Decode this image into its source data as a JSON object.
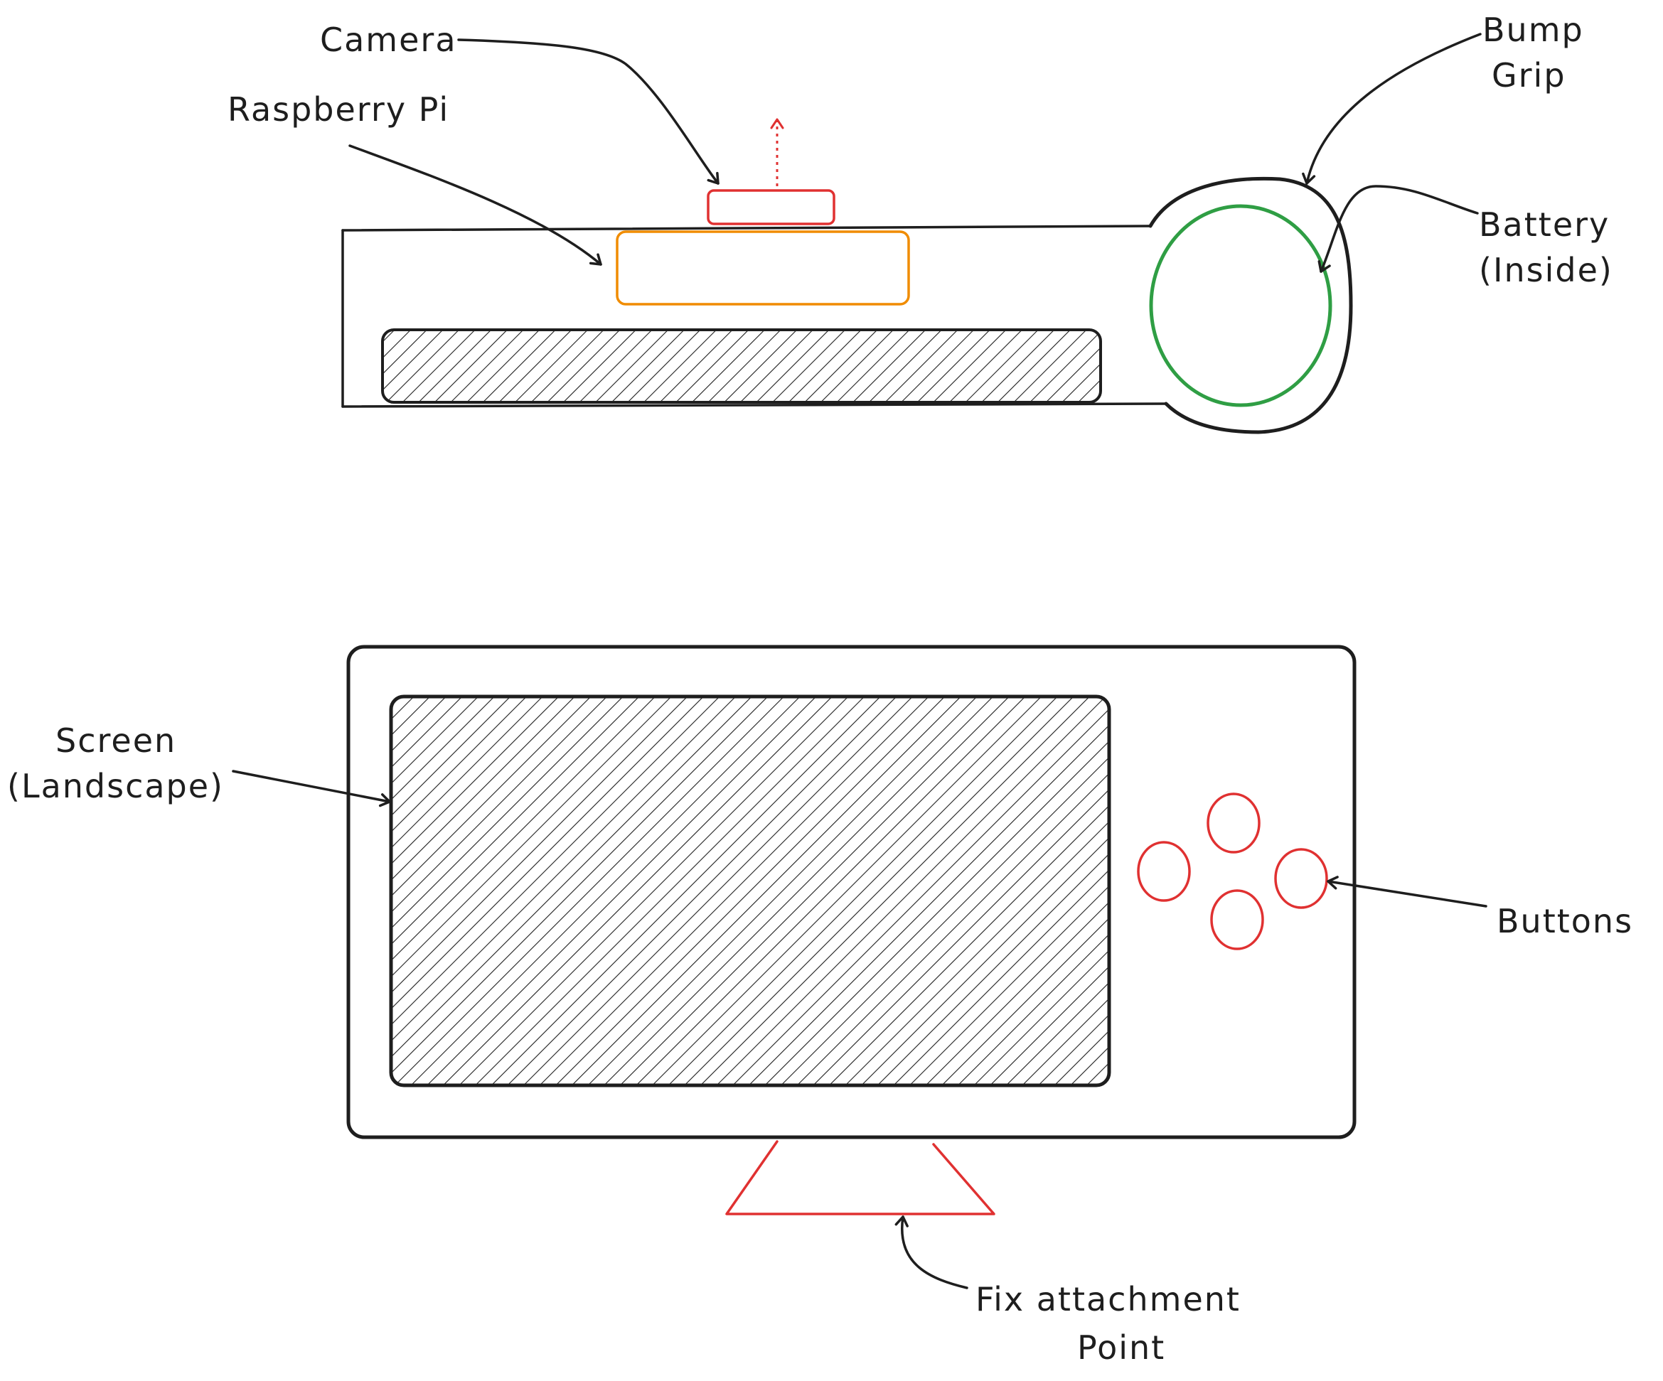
{
  "labels": {
    "camera": "Camera",
    "raspberry_pi": "Raspberry Pi",
    "bump_grip_line1": "Bump",
    "bump_grip_line2": "Grip",
    "battery_line1": "Battery",
    "battery_line2": "(Inside)",
    "screen_line1": "Screen",
    "screen_line2": "(Landscape)",
    "buttons": "Buttons",
    "attachment_line1": "Fix attachment",
    "attachment_line2": "Point"
  },
  "colors": {
    "ink": "#1e1e1e",
    "camera": "#e03131",
    "raspberry_pi": "#f08c00",
    "battery": "#2f9e44",
    "buttons": "#e03131",
    "attachment": "#e03131"
  }
}
